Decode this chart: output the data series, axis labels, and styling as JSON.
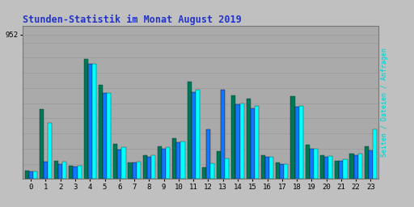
{
  "title": "Stunden-Statistik im Monat August 2019",
  "ytick_label": "952",
  "hours": [
    0,
    1,
    2,
    3,
    4,
    5,
    6,
    7,
    8,
    9,
    10,
    11,
    12,
    13,
    14,
    15,
    16,
    17,
    18,
    19,
    20,
    21,
    22,
    23
  ],
  "seiten": [
    55,
    460,
    120,
    90,
    790,
    620,
    230,
    110,
    155,
    215,
    270,
    640,
    75,
    185,
    550,
    530,
    155,
    110,
    545,
    225,
    155,
    120,
    165,
    215
  ],
  "dateien": [
    48,
    115,
    100,
    82,
    760,
    565,
    195,
    108,
    148,
    200,
    240,
    575,
    330,
    590,
    495,
    465,
    148,
    100,
    475,
    198,
    148,
    120,
    158,
    188
  ],
  "anfragen": [
    52,
    370,
    112,
    85,
    760,
    570,
    208,
    115,
    155,
    208,
    248,
    590,
    105,
    135,
    500,
    480,
    145,
    96,
    480,
    200,
    150,
    130,
    165,
    325
  ],
  "color_green": "#007755",
  "color_blue": "#1177ff",
  "color_cyan": "#00ffff",
  "bg_color": "#c0c0c0",
  "plot_bg": "#aaaaaa",
  "title_color": "#2233cc",
  "grid_color": "#999999",
  "max_val": 952,
  "ylim_max": 1010,
  "bar_width": 0.28,
  "right_label": "Seiten / Dateien / Anfragen",
  "right_label_color": "#00cccc"
}
